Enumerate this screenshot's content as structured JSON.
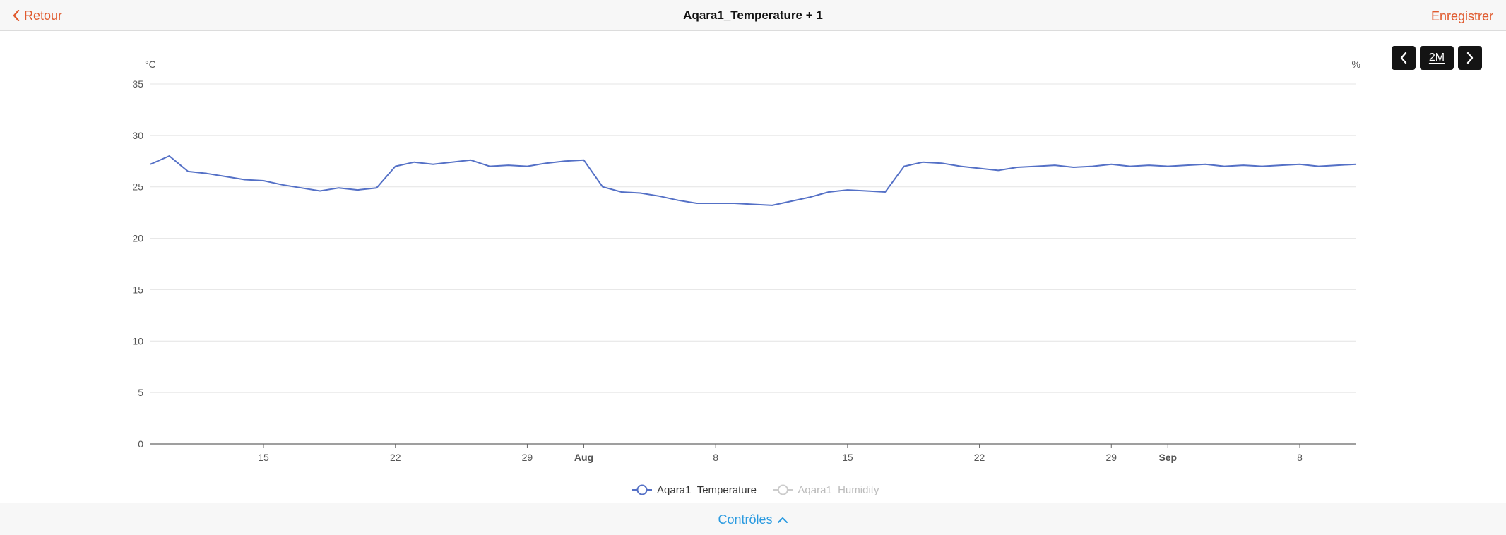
{
  "header": {
    "back_label": "Retour",
    "title": "Aqara1_Temperature + 1",
    "save_label": "Enregistrer"
  },
  "period_controls": {
    "period_label": "2M"
  },
  "footer": {
    "controls_label": "Contrôles"
  },
  "colors": {
    "accent": "#e05a2e",
    "link": "#2a9ae0",
    "series_temperature": "#5470c6",
    "legend_inactive": "#cccccc"
  },
  "chart_data": {
    "type": "line",
    "y_left_unit": "°C",
    "y_right_unit": "%",
    "ylim": [
      0,
      35
    ],
    "y_ticks": [
      0,
      5,
      10,
      15,
      20,
      25,
      30,
      35
    ],
    "xlim": [
      "2025-07-09",
      "2025-09-11"
    ],
    "x_ticks": [
      {
        "date": "2025-07-15",
        "label": "15",
        "bold": false
      },
      {
        "date": "2025-07-22",
        "label": "22",
        "bold": false
      },
      {
        "date": "2025-07-29",
        "label": "29",
        "bold": false
      },
      {
        "date": "2025-08-01",
        "label": "Aug",
        "bold": true
      },
      {
        "date": "2025-08-08",
        "label": "8",
        "bold": false
      },
      {
        "date": "2025-08-15",
        "label": "15",
        "bold": false
      },
      {
        "date": "2025-08-22",
        "label": "22",
        "bold": false
      },
      {
        "date": "2025-08-29",
        "label": "29",
        "bold": false
      },
      {
        "date": "2025-09-01",
        "label": "Sep",
        "bold": true
      },
      {
        "date": "2025-09-08",
        "label": "8",
        "bold": false
      }
    ],
    "grid": true,
    "legend_position": "bottom-center",
    "series": [
      {
        "name": "Aqara1_Temperature",
        "active": true,
        "x": [
          "2025-07-09",
          "2025-07-10",
          "2025-07-11",
          "2025-07-12",
          "2025-07-13",
          "2025-07-14",
          "2025-07-15",
          "2025-07-16",
          "2025-07-17",
          "2025-07-18",
          "2025-07-19",
          "2025-07-20",
          "2025-07-21",
          "2025-07-22",
          "2025-07-23",
          "2025-07-24",
          "2025-07-25",
          "2025-07-26",
          "2025-07-27",
          "2025-07-28",
          "2025-07-29",
          "2025-07-30",
          "2025-07-31",
          "2025-08-01",
          "2025-08-02",
          "2025-08-03",
          "2025-08-04",
          "2025-08-05",
          "2025-08-06",
          "2025-08-07",
          "2025-08-08",
          "2025-08-09",
          "2025-08-10",
          "2025-08-11",
          "2025-08-12",
          "2025-08-13",
          "2025-08-14",
          "2025-08-15",
          "2025-08-16",
          "2025-08-17",
          "2025-08-18",
          "2025-08-19",
          "2025-08-20",
          "2025-08-21",
          "2025-08-22",
          "2025-08-23",
          "2025-08-24",
          "2025-08-25",
          "2025-08-26",
          "2025-08-27",
          "2025-08-28",
          "2025-08-29",
          "2025-08-30",
          "2025-08-31",
          "2025-09-01",
          "2025-09-02",
          "2025-09-03",
          "2025-09-04",
          "2025-09-05",
          "2025-09-06",
          "2025-09-07",
          "2025-09-08",
          "2025-09-09",
          "2025-09-10",
          "2025-09-11"
        ],
        "values": [
          27.2,
          28.0,
          26.5,
          26.3,
          26.0,
          25.7,
          25.6,
          25.2,
          24.9,
          24.6,
          24.9,
          24.7,
          24.9,
          27.0,
          27.4,
          27.2,
          27.4,
          27.6,
          27.0,
          27.1,
          27.0,
          27.3,
          27.5,
          27.6,
          25.0,
          24.5,
          24.4,
          24.1,
          23.7,
          23.4,
          23.4,
          23.4,
          23.3,
          23.2,
          23.6,
          24.0,
          24.5,
          24.7,
          24.6,
          24.5,
          27.0,
          27.4,
          27.3,
          27.0,
          26.8,
          26.6,
          26.9,
          27.0,
          27.1,
          26.9,
          27.0,
          27.2,
          27.0,
          27.1,
          27.0,
          27.1,
          27.2,
          27.0,
          27.1,
          27.0,
          27.1,
          27.2,
          27.0,
          27.1,
          27.2
        ]
      },
      {
        "name": "Aqara1_Humidity",
        "active": false,
        "x": [],
        "values": []
      }
    ]
  }
}
